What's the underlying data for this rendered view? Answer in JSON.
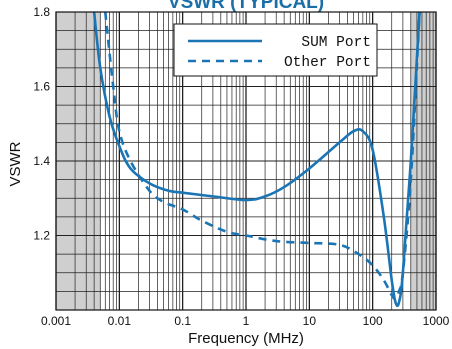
{
  "chart_data": {
    "type": "line",
    "title": "VSWR (TYPICAL)",
    "xlabel": "Frequency (MHz)",
    "ylabel": "VSWR",
    "x_scale": "log",
    "xlim": [
      0.001,
      1000
    ],
    "ylim": [
      1.0,
      1.8
    ],
    "x_ticks": [
      0.001,
      0.01,
      0.1,
      1,
      10,
      100,
      1000
    ],
    "x_tick_labels": [
      "0.001",
      "0.01",
      "0.1",
      "1",
      "10",
      "100",
      "1000"
    ],
    "y_ticks": [
      1.2,
      1.4,
      1.6,
      1.8
    ],
    "y_tick_labels": [
      "1.2",
      "1.4",
      "1.6",
      "1.8"
    ],
    "grid": true,
    "shaded_bands": [
      [
        0.001,
        0.005
      ],
      [
        400,
        1000
      ]
    ],
    "legend_position": "top-right",
    "colors": {
      "line": "#1b75b5",
      "shade": "#cfcfcf",
      "title": "#1b6fa8"
    },
    "series": [
      {
        "name": "SUM Port",
        "style": "solid",
        "points": [
          [
            0.004,
            1.8
          ],
          [
            0.005,
            1.65
          ],
          [
            0.007,
            1.52
          ],
          [
            0.01,
            1.44
          ],
          [
            0.015,
            1.38
          ],
          [
            0.03,
            1.34
          ],
          [
            0.06,
            1.32
          ],
          [
            0.1,
            1.315
          ],
          [
            0.3,
            1.305
          ],
          [
            1,
            1.295
          ],
          [
            2,
            1.305
          ],
          [
            4,
            1.33
          ],
          [
            10,
            1.38
          ],
          [
            30,
            1.45
          ],
          [
            50,
            1.48
          ],
          [
            70,
            1.48
          ],
          [
            100,
            1.43
          ],
          [
            150,
            1.25
          ],
          [
            200,
            1.08
          ],
          [
            230,
            1.02
          ],
          [
            260,
            1.02
          ],
          [
            300,
            1.1
          ],
          [
            400,
            1.4
          ],
          [
            550,
            1.8
          ]
        ]
      },
      {
        "name": "Other Port",
        "style": "dashed",
        "points": [
          [
            0.006,
            1.8
          ],
          [
            0.008,
            1.6
          ],
          [
            0.01,
            1.48
          ],
          [
            0.015,
            1.4
          ],
          [
            0.03,
            1.32
          ],
          [
            0.05,
            1.29
          ],
          [
            0.1,
            1.27
          ],
          [
            0.2,
            1.24
          ],
          [
            0.5,
            1.21
          ],
          [
            1,
            1.2
          ],
          [
            3,
            1.185
          ],
          [
            10,
            1.18
          ],
          [
            30,
            1.175
          ],
          [
            60,
            1.15
          ],
          [
            100,
            1.12
          ],
          [
            150,
            1.08
          ],
          [
            200,
            1.04
          ],
          [
            230,
            1.03
          ],
          [
            260,
            1.05
          ],
          [
            300,
            1.1
          ],
          [
            400,
            1.35
          ],
          [
            550,
            1.8
          ]
        ]
      }
    ]
  }
}
